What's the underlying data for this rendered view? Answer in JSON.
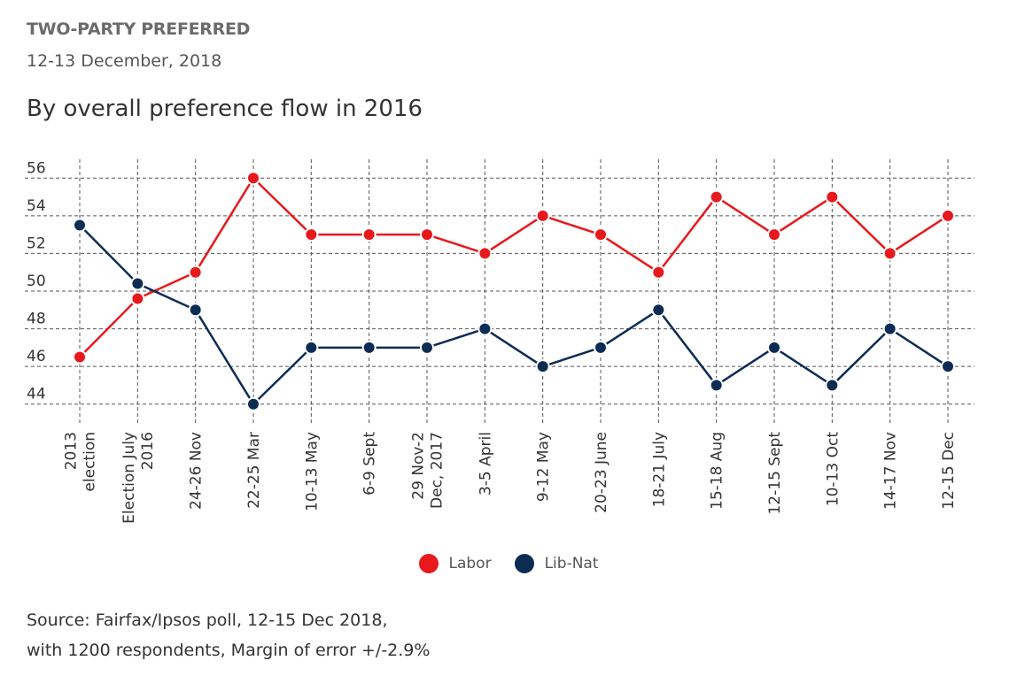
{
  "header": {
    "title": "TWO-PARTY PREFERRED",
    "date": "12-13 December, 2018",
    "subtitle": "By overall preference flow in 2016"
  },
  "chart_data": {
    "type": "line",
    "title": "By overall preference flow in 2016",
    "categories": [
      [
        "2013",
        "election"
      ],
      [
        "Election July",
        "2016"
      ],
      [
        "24-26 Nov"
      ],
      [
        "22-25 Mar"
      ],
      [
        "10-13 May"
      ],
      [
        "6-9 Sept"
      ],
      [
        "29 Nov-2",
        "Dec, 2017"
      ],
      [
        "3-5 April"
      ],
      [
        "9-12 May"
      ],
      [
        "20-23 June"
      ],
      [
        "18-21 July"
      ],
      [
        "15-18 Aug"
      ],
      [
        "12-15 Sept"
      ],
      [
        "10-13 Oct"
      ],
      [
        "14-17 Nov"
      ],
      [
        "12-15 Dec"
      ]
    ],
    "series": [
      {
        "name": "Labor",
        "color": "#e8191c",
        "values": [
          46.5,
          49.6,
          51,
          56,
          53,
          53,
          53,
          52,
          54,
          53,
          51,
          55,
          53,
          55,
          52,
          54
        ]
      },
      {
        "name": "Lib-Nat",
        "color": "#0d2c54",
        "values": [
          53.5,
          50.4,
          49,
          44,
          47,
          47,
          47,
          48,
          46,
          47,
          49,
          45,
          47,
          45,
          48,
          46
        ]
      }
    ],
    "yticks": [
      44,
      46,
      48,
      50,
      52,
      54,
      56
    ],
    "ylim": [
      43,
      57
    ],
    "grid": true,
    "legend_position": "bottom-center"
  },
  "legend": {
    "items": [
      {
        "label": "Labor",
        "color": "#e8191c"
      },
      {
        "label": "Lib-Nat",
        "color": "#0d2c54"
      }
    ]
  },
  "footer": {
    "source_line1": "Source: Fairfax/Ipsos poll, 12-15 Dec 2018,",
    "source_line2": "with 1200 respondents, Margin of error +/-2.9%"
  }
}
